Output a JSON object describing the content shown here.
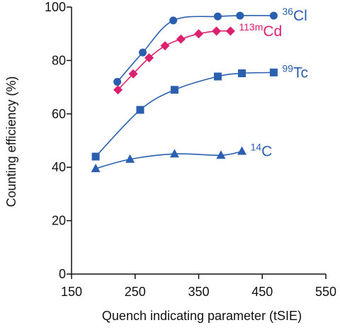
{
  "chart_data": {
    "type": "scatter",
    "xlabel": "Quench indicating parameter (tSIE)",
    "ylabel": "Counting efficiency (%)",
    "xlim": [
      150,
      550
    ],
    "ylim": [
      0,
      100
    ],
    "x_ticks": [
      150,
      250,
      350,
      450,
      550
    ],
    "y_ticks": [
      0,
      20,
      40,
      60,
      80,
      100
    ],
    "x_tick_labels": [
      "150",
      "250",
      "350",
      "450",
      "550"
    ],
    "y_tick_labels": [
      "0",
      "20",
      "40",
      "60",
      "80",
      "100"
    ],
    "grid": false,
    "legend": "series labels placed at right end of each curve",
    "series": [
      {
        "name": "36Cl",
        "label_sup": "36",
        "label_main": "Cl",
        "marker": "circle",
        "color": "#2a5fb0",
        "label_color": "#2a5fb0",
        "x": [
          222,
          262,
          310,
          380,
          415,
          468
        ],
        "y": [
          72,
          83,
          95,
          96.5,
          96.8,
          96.8
        ]
      },
      {
        "name": "113mCd",
        "label_sup": "113m",
        "label_main": "Cd",
        "marker": "diamond",
        "color": "#dc1f6e",
        "label_color": "#dc1f6e",
        "x": [
          223,
          247,
          272,
          297,
          322,
          350,
          378,
          400
        ],
        "y": [
          69,
          75,
          81,
          85.5,
          88,
          90,
          91,
          91
        ]
      },
      {
        "name": "99Tc",
        "label_sup": "99",
        "label_main": "Tc",
        "marker": "square",
        "color": "#2a5fb0",
        "label_color": "#2a5fb0",
        "x": [
          188,
          258,
          312,
          380,
          418,
          468
        ],
        "y": [
          44,
          61.5,
          69,
          74,
          75.2,
          75.5
        ]
      },
      {
        "name": "14C",
        "label_sup": "14",
        "label_main": "C",
        "marker": "triangle",
        "color": "#2a5fb0",
        "label_color": "#2a5fb0",
        "x": [
          188,
          242,
          312,
          385,
          418
        ],
        "y": [
          39.5,
          43,
          45,
          44.5,
          46
        ]
      }
    ]
  }
}
